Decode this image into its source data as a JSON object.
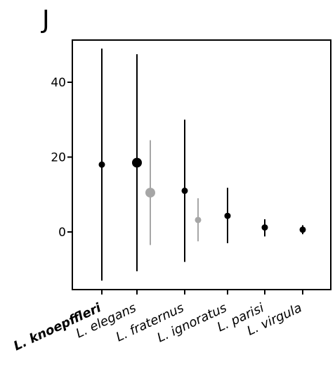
{
  "panel": {
    "letter": "J"
  },
  "chart_data": {
    "type": "scatter",
    "title": "",
    "xlabel": "",
    "ylabel": "",
    "ylim": [
      -14,
      52
    ],
    "yticks": [
      0,
      20,
      40
    ],
    "grid": false,
    "legend": "none",
    "categories": [
      {
        "label": "L. knoepffleri",
        "bold": true
      },
      {
        "label": "L. elegans",
        "bold": false
      },
      {
        "label": "L. fraternus",
        "bold": false
      },
      {
        "label": "L. ignoratus",
        "bold": false
      },
      {
        "label": "L. parisi",
        "bold": false
      },
      {
        "label": "L. virgula",
        "bold": false
      }
    ],
    "points": [
      {
        "category": 0,
        "offset": 0,
        "y": 18,
        "low": -13,
        "high": 49,
        "color": "#000000",
        "size": "medium"
      },
      {
        "category": 1,
        "offset": 0,
        "y": 18.5,
        "low": -10.5,
        "high": 47.5,
        "color": "#000000",
        "size": "large"
      },
      {
        "category": 1,
        "offset": 1,
        "y": 10.5,
        "low": -3.5,
        "high": 24.5,
        "color": "#a6a6a6",
        "size": "large"
      },
      {
        "category": 2,
        "offset": 0,
        "y": 11,
        "low": -8,
        "high": 30,
        "color": "#000000",
        "size": "medium"
      },
      {
        "category": 2,
        "offset": 1,
        "y": 3.2,
        "low": -2.5,
        "high": 9,
        "color": "#a6a6a6",
        "size": "medium"
      },
      {
        "category": 3,
        "offset": 0,
        "y": 4.3,
        "low": -3,
        "high": 11.8,
        "color": "#000000",
        "size": "medium"
      },
      {
        "category": 4,
        "offset": 0,
        "y": 1.2,
        "low": -1.2,
        "high": 3.4,
        "color": "#000000",
        "size": "medium"
      },
      {
        "category": 5,
        "offset": 0,
        "y": 0.6,
        "low": -0.6,
        "high": 1.8,
        "color": "#000000",
        "size": "medium"
      }
    ]
  }
}
